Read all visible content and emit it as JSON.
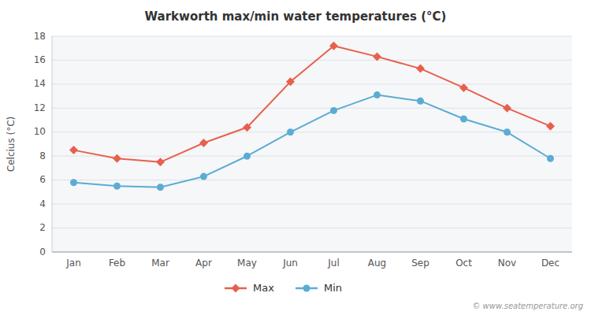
{
  "chart_data": {
    "type": "line",
    "title": "Warkworth max/min water temperatures (°C)",
    "categories": [
      "Jan",
      "Feb",
      "Mar",
      "Apr",
      "May",
      "Jun",
      "Jul",
      "Aug",
      "Sep",
      "Oct",
      "Nov",
      "Dec"
    ],
    "series": [
      {
        "name": "Max",
        "color": "#E8604C",
        "marker": "diamond",
        "values": [
          8.5,
          7.8,
          7.5,
          9.1,
          10.4,
          14.2,
          17.2,
          16.3,
          15.3,
          13.7,
          12.0,
          10.5
        ]
      },
      {
        "name": "Min",
        "color": "#5BACD4",
        "marker": "circle",
        "values": [
          5.8,
          5.5,
          5.4,
          6.3,
          8.0,
          10.0,
          11.8,
          13.1,
          12.6,
          11.1,
          10.0,
          7.8
        ]
      }
    ],
    "y_label": "Celcius (°C)",
    "ylim": [
      0,
      18
    ],
    "yticks": [
      0,
      2,
      4,
      6,
      8,
      10,
      12,
      14,
      16,
      18
    ],
    "grid": true,
    "legend": "bottom",
    "annotations": [
      "© www.seatemperature.org"
    ]
  }
}
